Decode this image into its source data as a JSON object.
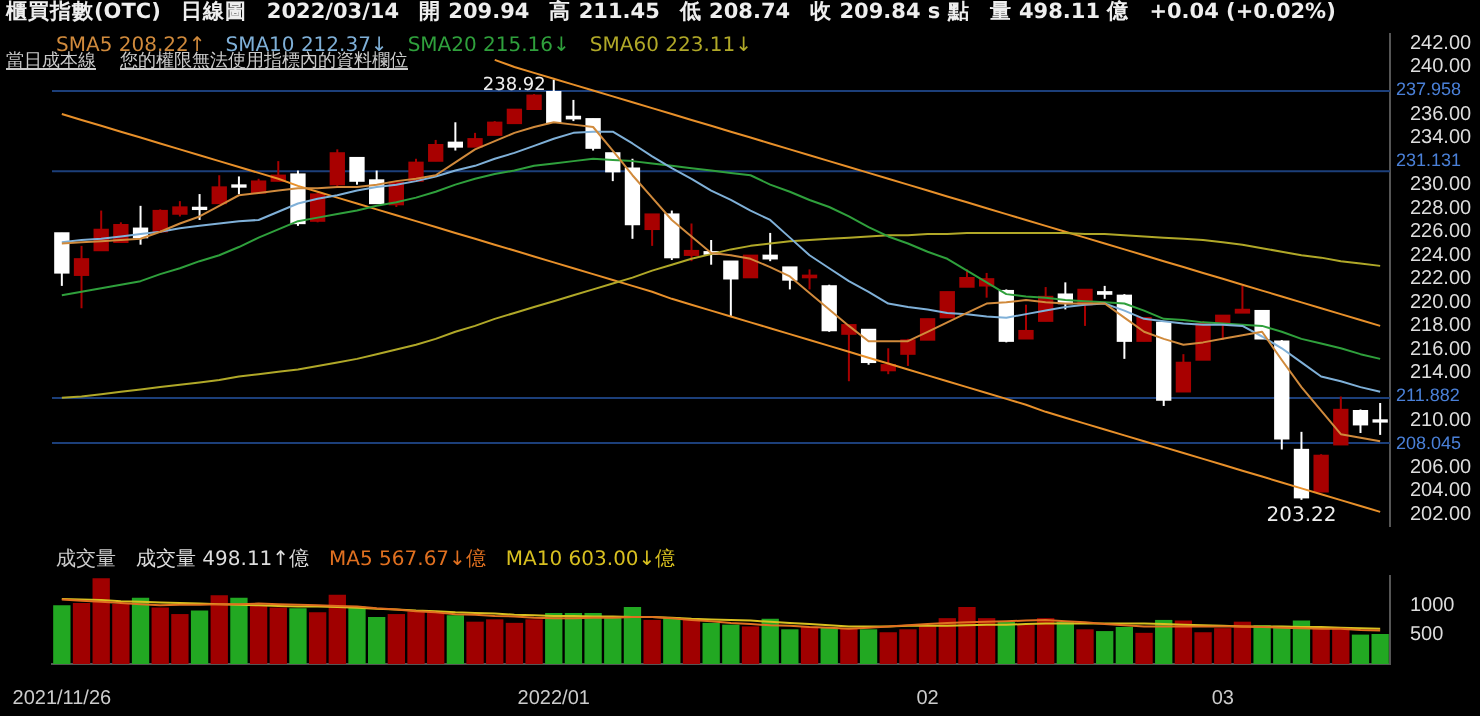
{
  "chart_data": [
    {
      "type": "candlestick",
      "title": "櫃買指數(OTC)",
      "subtitle": "日線圖",
      "annotations": [
        "2022/03/14",
        "開 209.94",
        "高 211.45",
        "低 208.74",
        "收 209.84 s 點",
        "量 498.11 億",
        "+0.04 (+0.02%)",
        "當日成本線",
        "您的權限無法使用指標內的資料欄位",
        {
          "text": "238.92",
          "x": "2022/01",
          "y": 238.92
        },
        {
          "text": "203.22",
          "y": 203.22
        }
      ],
      "categories": [
        "2021/11/26",
        null,
        null,
        null,
        null,
        null,
        null,
        null,
        null,
        null,
        null,
        null,
        null,
        null,
        null,
        null,
        null,
        null,
        null,
        null,
        null,
        null,
        null,
        null,
        null,
        "2022/01",
        null,
        null,
        null,
        null,
        null,
        null,
        null,
        null,
        null,
        null,
        null,
        null,
        null,
        null,
        null,
        null,
        null,
        null,
        "02",
        null,
        null,
        null,
        null,
        null,
        null,
        null,
        null,
        null,
        null,
        null,
        null,
        null,
        null,
        "03",
        null,
        null,
        null,
        null,
        null,
        null,
        null,
        null
      ],
      "ohlc": [
        [
          225.9,
          225.9,
          221.4,
          222.5
        ],
        [
          222.3,
          224.8,
          219.5,
          223.7
        ],
        [
          224.4,
          227.8,
          224.4,
          226.2
        ],
        [
          225.1,
          226.8,
          225.1,
          226.6
        ],
        [
          226.3,
          228.2,
          224.9,
          225.5
        ],
        [
          226.0,
          227.9,
          226.0,
          227.8
        ],
        [
          227.5,
          228.6,
          227.3,
          228.1
        ],
        [
          228.0,
          229.2,
          227.0,
          227.9
        ],
        [
          228.4,
          230.8,
          228.4,
          229.8
        ],
        [
          229.9,
          230.7,
          229.2,
          229.8
        ],
        [
          229.3,
          230.5,
          229.3,
          230.3
        ],
        [
          230.3,
          232.0,
          230.3,
          230.8
        ],
        [
          230.9,
          231.2,
          226.5,
          226.7
        ],
        [
          226.9,
          229.3,
          226.8,
          229.2
        ],
        [
          230.0,
          233.0,
          229.8,
          232.7
        ],
        [
          232.3,
          232.3,
          230.0,
          230.3
        ],
        [
          230.4,
          231.2,
          228.4,
          228.4
        ],
        [
          228.3,
          230.3,
          228.1,
          230.2
        ],
        [
          230.3,
          232.2,
          230.3,
          231.9
        ],
        [
          232.0,
          233.8,
          232.0,
          233.4
        ],
        [
          233.6,
          235.3,
          232.9,
          233.2
        ],
        [
          233.2,
          234.4,
          233.2,
          233.9
        ],
        [
          234.2,
          235.4,
          234.2,
          235.3
        ],
        [
          235.2,
          236.4,
          235.2,
          236.4
        ],
        [
          236.4,
          237.7,
          236.4,
          237.6
        ],
        [
          237.9,
          238.92,
          235.3,
          235.3
        ],
        [
          235.8,
          237.2,
          235.4,
          235.6
        ],
        [
          235.6,
          235.6,
          232.9,
          233.1
        ],
        [
          232.7,
          232.7,
          230.3,
          231.1
        ],
        [
          231.4,
          232.2,
          225.4,
          226.6
        ],
        [
          226.2,
          227.5,
          224.8,
          227.5
        ],
        [
          227.5,
          227.8,
          223.6,
          223.8
        ],
        [
          224.0,
          226.7,
          223.5,
          224.4
        ],
        [
          224.3,
          225.3,
          223.2,
          224.1
        ],
        [
          223.5,
          223.5,
          218.8,
          222.0
        ],
        [
          222.1,
          224.0,
          222.1,
          224.0
        ],
        [
          224.0,
          225.9,
          223.5,
          223.7
        ],
        [
          223.0,
          223.0,
          221.1,
          221.9
        ],
        [
          222.1,
          222.8,
          221.1,
          222.3
        ],
        [
          221.4,
          221.5,
          217.5,
          217.6
        ],
        [
          217.3,
          218.1,
          213.3,
          218.1
        ],
        [
          217.7,
          217.7,
          214.7,
          214.9
        ],
        [
          214.2,
          216.1,
          213.9,
          214.7
        ],
        [
          215.6,
          216.9,
          214.6,
          216.8
        ],
        [
          216.8,
          218.6,
          216.8,
          218.6
        ],
        [
          218.7,
          220.9,
          218.7,
          220.9
        ],
        [
          221.3,
          222.8,
          221.3,
          222.1
        ],
        [
          221.4,
          222.5,
          220.4,
          222.0
        ],
        [
          221.0,
          221.1,
          216.6,
          216.7
        ],
        [
          216.9,
          219.8,
          216.9,
          217.6
        ],
        [
          218.4,
          221.3,
          218.4,
          220.5
        ],
        [
          220.7,
          221.7,
          219.4,
          219.9
        ],
        [
          219.8,
          221.1,
          218.0,
          221.1
        ],
        [
          220.9,
          221.4,
          220.3,
          220.7
        ],
        [
          220.6,
          220.7,
          215.2,
          216.7
        ],
        [
          216.7,
          218.7,
          216.7,
          218.7
        ],
        [
          218.3,
          218.4,
          211.2,
          211.7
        ],
        [
          212.4,
          215.6,
          212.4,
          214.9
        ],
        [
          215.1,
          218.4,
          215.1,
          218.2
        ],
        [
          218.2,
          218.9,
          216.8,
          218.9
        ],
        [
          219.1,
          221.4,
          219.1,
          219.4
        ],
        [
          219.3,
          219.3,
          216.9,
          216.9
        ],
        [
          216.7,
          216.8,
          207.5,
          208.4
        ],
        [
          207.5,
          209.0,
          203.22,
          203.4
        ],
        [
          203.9,
          207.1,
          203.9,
          207.0
        ],
        [
          207.9,
          212.0,
          207.9,
          210.9
        ],
        [
          210.8,
          210.9,
          208.9,
          209.6
        ],
        [
          209.94,
          211.45,
          208.74,
          209.84
        ]
      ],
      "colors": [
        "#ffffff",
        "#a80000",
        "#a80000",
        "#a80000",
        "#ffffff",
        "#a80000",
        "#a80000",
        "#ffffff",
        "#a80000",
        "#ffffff",
        "#a80000",
        "#a80000",
        "#ffffff",
        "#a80000",
        "#a80000",
        "#ffffff",
        "#ffffff",
        "#a80000",
        "#a80000",
        "#a80000",
        "#ffffff",
        "#a80000",
        "#a80000",
        "#a80000",
        "#a80000",
        "#ffffff",
        "#ffffff",
        "#ffffff",
        "#ffffff",
        "#ffffff",
        "#a80000",
        "#ffffff",
        "#a80000",
        "#ffffff",
        "#ffffff",
        "#a80000",
        "#ffffff",
        "#ffffff",
        "#a80000",
        "#ffffff",
        "#a80000",
        "#ffffff",
        "#a80000",
        "#a80000",
        "#a80000",
        "#a80000",
        "#a80000",
        "#a80000",
        "#ffffff",
        "#a80000",
        "#a80000",
        "#ffffff",
        "#a80000",
        "#ffffff",
        "#ffffff",
        "#a80000",
        "#ffffff",
        "#a80000",
        "#a80000",
        "#a80000",
        "#a80000",
        "#ffffff",
        "#ffffff",
        "#ffffff",
        "#a80000",
        "#a80000",
        "#ffffff",
        "#ffffff"
      ],
      "series": [
        {
          "type": "line",
          "name": "SMA5 208.22↑",
          "color": "#d08a3c",
          "values": [
            225.0,
            225.1,
            225.2,
            225.3,
            225.4,
            226.0,
            226.7,
            227.3,
            228.2,
            229.1,
            229.3,
            229.5,
            229.7,
            229.7,
            229.8,
            229.8,
            230.0,
            230.3,
            230.5,
            230.8,
            231.9,
            233.0,
            233.7,
            234.4,
            234.9,
            235.3,
            235.1,
            234.9,
            232.9,
            230.8,
            228.9,
            227.0,
            225.6,
            224.2,
            224.0,
            223.7,
            223.0,
            222.2,
            220.8,
            219.4,
            218.0,
            216.7,
            216.7,
            216.7,
            217.5,
            218.3,
            219.1,
            219.9,
            220.0,
            220.2,
            220.0,
            219.9,
            219.9,
            219.9,
            218.7,
            217.5,
            216.9,
            216.4,
            216.6,
            216.9,
            217.2,
            217.5,
            215.1,
            212.8,
            210.8,
            208.8,
            208.5,
            208.2
          ]
        },
        {
          "type": "line",
          "name": "SMA10 212.37↓",
          "color": "#7fb0d8",
          "values": [
            225.1,
            225.3,
            225.4,
            225.6,
            225.8,
            226.0,
            226.3,
            226.5,
            226.7,
            226.9,
            227.0,
            227.7,
            228.4,
            228.8,
            229.1,
            229.5,
            229.8,
            230.0,
            230.3,
            230.7,
            231.2,
            231.6,
            232.2,
            232.7,
            233.3,
            233.9,
            234.4,
            234.5,
            234.5,
            233.5,
            232.4,
            231.4,
            230.5,
            229.5,
            228.7,
            227.8,
            227.0,
            225.5,
            224.0,
            222.9,
            221.8,
            220.9,
            219.9,
            219.6,
            219.4,
            219.1,
            219.0,
            218.8,
            218.7,
            219.0,
            219.3,
            219.6,
            219.8,
            219.9,
            219.3,
            218.6,
            218.4,
            218.2,
            218.1,
            218.1,
            218.0,
            217.1,
            216.1,
            214.9,
            213.7,
            213.3,
            212.8,
            212.4
          ]
        },
        {
          "type": "line",
          "name": "SMA20 215.16↓",
          "color": "#2fa03c",
          "values": [
            220.6,
            220.9,
            221.2,
            221.5,
            221.8,
            222.4,
            222.9,
            223.5,
            224.0,
            224.7,
            225.5,
            226.2,
            226.9,
            227.2,
            227.5,
            227.8,
            228.2,
            228.5,
            228.9,
            229.4,
            230.0,
            230.5,
            230.9,
            231.2,
            231.6,
            231.8,
            232.0,
            232.2,
            232.1,
            232.0,
            231.8,
            231.6,
            231.4,
            231.2,
            231.0,
            230.8,
            230.0,
            229.4,
            228.7,
            228.1,
            227.3,
            226.4,
            225.6,
            225.0,
            224.3,
            223.7,
            222.7,
            221.7,
            220.7,
            220.5,
            220.4,
            220.2,
            220.1,
            220.0,
            219.9,
            219.3,
            218.6,
            218.5,
            218.3,
            218.2,
            218.1,
            218.0,
            217.5,
            216.9,
            216.5,
            216.1,
            215.6,
            215.2
          ]
        },
        {
          "type": "line",
          "name": "SMA60 223.11↓",
          "color": "#b0a828",
          "values": [
            211.9,
            212.0,
            212.2,
            212.4,
            212.6,
            212.8,
            213.0,
            213.2,
            213.4,
            213.7,
            213.9,
            214.1,
            214.3,
            214.6,
            214.9,
            215.2,
            215.6,
            216.0,
            216.4,
            216.9,
            217.5,
            218.0,
            218.6,
            219.1,
            219.6,
            220.1,
            220.6,
            221.1,
            221.6,
            222.1,
            222.7,
            223.2,
            223.7,
            224.1,
            224.5,
            224.8,
            225.0,
            225.2,
            225.3,
            225.4,
            225.5,
            225.6,
            225.7,
            225.7,
            225.8,
            225.8,
            225.9,
            225.9,
            225.9,
            225.9,
            225.9,
            225.9,
            225.8,
            225.8,
            225.7,
            225.6,
            225.5,
            225.4,
            225.3,
            225.1,
            224.9,
            224.6,
            224.3,
            224.0,
            223.8,
            223.5,
            223.3,
            223.1
          ]
        },
        {
          "type": "line",
          "color": "#e8902a",
          "values": [
            null,
            null,
            null,
            null,
            null,
            null,
            null,
            null,
            null,
            null,
            null,
            null,
            null,
            null,
            null,
            null,
            null,
            null,
            null,
            null,
            null,
            null,
            240.6,
            240.0,
            239.5,
            239.0,
            238.5,
            238.0,
            237.5,
            237.0,
            236.5,
            236.0,
            235.5,
            235.0,
            234.5,
            234.0,
            233.5,
            233.0,
            232.5,
            232.0,
            231.5,
            231.0,
            230.5,
            230.0,
            229.5,
            229.0,
            228.5,
            228.0,
            227.5,
            227.0,
            226.5,
            226.0,
            225.5,
            225.0,
            224.5,
            224.0,
            223.5,
            223.0,
            222.5,
            222.0,
            221.5,
            221.0,
            220.5,
            220.0,
            219.5,
            219.0,
            218.5,
            218.0
          ]
        },
        {
          "type": "line",
          "color": "#e8902a",
          "values": [
            236.0,
            235.5,
            235.0,
            234.5,
            234.0,
            233.5,
            233.0,
            232.5,
            232.0,
            231.5,
            231.0,
            230.5,
            229.9,
            229.4,
            228.9,
            228.4,
            227.9,
            227.4,
            226.9,
            226.4,
            225.9,
            225.4,
            224.9,
            224.4,
            223.9,
            223.4,
            222.9,
            222.4,
            221.9,
            221.4,
            220.9,
            220.3,
            219.8,
            219.3,
            218.8,
            218.3,
            217.8,
            217.3,
            216.8,
            216.3,
            215.8,
            215.3,
            214.8,
            214.3,
            213.8,
            213.3,
            212.8,
            212.3,
            211.8,
            211.3,
            210.7,
            210.2,
            209.7,
            209.2,
            208.7,
            208.2,
            207.7,
            207.2,
            206.7,
            206.2,
            205.7,
            205.2,
            204.7,
            204.2,
            203.7,
            203.2,
            202.7,
            202.2
          ]
        }
      ],
      "ref_lines": [
        {
          "axis": "y",
          "value": 237.958,
          "label": "237.958",
          "color": "#1c3f7a"
        },
        {
          "axis": "y",
          "value": 231.131,
          "label": "231.131",
          "color": "#1c3f7a"
        },
        {
          "axis": "y",
          "value": 211.882,
          "label": "211.882",
          "color": "#1c3f7a"
        },
        {
          "axis": "y",
          "value": 208.045,
          "label": "208.045",
          "color": "#1c3f7a"
        }
      ],
      "ylim": [
        201,
        242.8
      ],
      "yticks": [
        {
          "value": 242,
          "label": "242.00"
        },
        {
          "value": 240,
          "label": "240.00"
        },
        {
          "value": 236,
          "label": "236.00"
        },
        {
          "value": 234,
          "label": "234.00"
        },
        {
          "value": 230,
          "label": "230.00"
        },
        {
          "value": 228,
          "label": "228.00"
        },
        {
          "value": 226,
          "label": "226.00"
        },
        {
          "value": 224,
          "label": "224.00"
        },
        {
          "value": 222,
          "label": "222.00"
        },
        {
          "value": 220,
          "label": "220.00"
        },
        {
          "value": 218,
          "label": "218.00"
        },
        {
          "value": 216,
          "label": "216.00"
        },
        {
          "value": 214,
          "label": "214.00"
        },
        {
          "value": 210,
          "label": "210.00"
        },
        {
          "value": 206,
          "label": "206.00"
        },
        {
          "value": 204,
          "label": "204.00"
        },
        {
          "value": 202,
          "label": "202.00"
        }
      ],
      "tick_labels": "y",
      "legend": "top left"
    },
    {
      "type": "bar",
      "ylabel": "成交量",
      "categories": [
        "2021/11/26",
        null,
        null,
        null,
        null,
        null,
        null,
        null,
        null,
        null,
        null,
        null,
        null,
        null,
        null,
        null,
        null,
        null,
        null,
        null,
        null,
        null,
        null,
        null,
        null,
        "2022/01",
        null,
        null,
        null,
        null,
        null,
        null,
        null,
        null,
        null,
        null,
        null,
        null,
        null,
        null,
        null,
        null,
        null,
        null,
        "02",
        null,
        null,
        null,
        null,
        null,
        null,
        null,
        null,
        null,
        null,
        null,
        null,
        null,
        null,
        "03",
        null,
        null,
        null,
        null,
        null,
        null,
        null,
        null
      ],
      "series": [
        {
          "type": "bar",
          "name": "成交量 498.11↑億",
          "values": [
            990,
            1030,
            1450,
            1010,
            1120,
            950,
            840,
            900,
            1160,
            1120,
            990,
            950,
            940,
            870,
            1170,
            970,
            790,
            840,
            880,
            870,
            820,
            710,
            750,
            690,
            750,
            860,
            860,
            860,
            790,
            960,
            740,
            790,
            770,
            690,
            660,
            630,
            760,
            580,
            620,
            610,
            600,
            580,
            530,
            580,
            650,
            770,
            960,
            770,
            710,
            660,
            770,
            710,
            580,
            550,
            620,
            520,
            740,
            730,
            530,
            600,
            710,
            650,
            640,
            730,
            610,
            600,
            490,
            500
          ],
          "colors": [
            "#22a822",
            "#a00000",
            "#a00000",
            "#a00000",
            "#22a822",
            "#a00000",
            "#a00000",
            "#22a822",
            "#a00000",
            "#22a822",
            "#a00000",
            "#a00000",
            "#22a822",
            "#a00000",
            "#a00000",
            "#22a822",
            "#22a822",
            "#a00000",
            "#a00000",
            "#a00000",
            "#22a822",
            "#a00000",
            "#a00000",
            "#a00000",
            "#a00000",
            "#22a822",
            "#22a822",
            "#22a822",
            "#22a822",
            "#22a822",
            "#a00000",
            "#22a822",
            "#a00000",
            "#22a822",
            "#22a822",
            "#a00000",
            "#22a822",
            "#22a822",
            "#a00000",
            "#22a822",
            "#a00000",
            "#22a822",
            "#a00000",
            "#a00000",
            "#a00000",
            "#a00000",
            "#a00000",
            "#a00000",
            "#22a822",
            "#a00000",
            "#a00000",
            "#22a822",
            "#a00000",
            "#22a822",
            "#22a822",
            "#a00000",
            "#22a822",
            "#a00000",
            "#a00000",
            "#a00000",
            "#a00000",
            "#22a822",
            "#22a822",
            "#22a822",
            "#a00000",
            "#a00000",
            "#22a822",
            "#22a822"
          ]
        },
        {
          "type": "line",
          "name": "MA5 567.67↓億",
          "color": "#e07020",
          "values": [
            1100,
            1080,
            1060,
            1040,
            1020,
            1000,
            1010,
            1010,
            1020,
            1020,
            1030,
            1020,
            1010,
            1000,
            990,
            980,
            950,
            930,
            900,
            880,
            850,
            840,
            820,
            810,
            790,
            780,
            780,
            790,
            790,
            800,
            800,
            780,
            750,
            730,
            700,
            680,
            660,
            650,
            630,
            620,
            600,
            620,
            640,
            660,
            680,
            700,
            710,
            720,
            730,
            740,
            750,
            730,
            710,
            680,
            660,
            640,
            640,
            640,
            640,
            640,
            640,
            630,
            620,
            610,
            600,
            600,
            580,
            570
          ]
        },
        {
          "type": "line",
          "name": "MA10 603.00↓億",
          "color": "#d8c020",
          "values": [
            1110,
            1100,
            1090,
            1070,
            1060,
            1050,
            1040,
            1030,
            1020,
            1010,
            1000,
            990,
            980,
            980,
            970,
            960,
            940,
            930,
            910,
            900,
            880,
            870,
            860,
            840,
            830,
            820,
            820,
            810,
            810,
            800,
            800,
            790,
            770,
            760,
            750,
            740,
            720,
            700,
            680,
            660,
            640,
            640,
            640,
            650,
            650,
            650,
            660,
            670,
            670,
            680,
            690,
            690,
            690,
            690,
            690,
            690,
            680,
            670,
            660,
            650,
            640,
            640,
            640,
            630,
            630,
            620,
            610,
            600
          ]
        }
      ],
      "ylim": [
        0,
        1500
      ],
      "yticks": [
        500,
        1000
      ],
      "legend": "top left"
    }
  ]
}
